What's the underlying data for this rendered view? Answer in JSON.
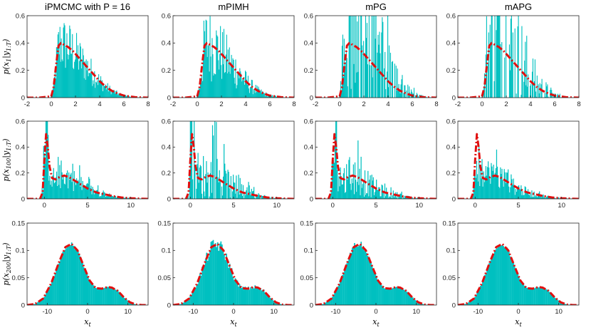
{
  "titles": [
    "iPMCMC with P = 16",
    "mPIMH",
    "mPG",
    "mAPG"
  ],
  "ylabels": [
    {
      "main": "p(x",
      "sub1": "1",
      "mid": "|y",
      "sub2": "1:T",
      "end": ")"
    },
    {
      "main": "p(x",
      "sub1": "100",
      "mid": "|y",
      "sub2": "1:T",
      "end": ")"
    },
    {
      "main": "p(x",
      "sub1": "200",
      "mid": "|y",
      "sub2": "1:T",
      "end": ")"
    }
  ],
  "xlabel": {
    "main": "x",
    "sub": "t"
  },
  "colors": {
    "hist": "#00c0c0",
    "density": "#e01010",
    "axis": "#262626"
  },
  "chart_data": [
    {
      "row": 0,
      "type": "bar",
      "description": "Histogram of samples (cyan) with true posterior density p(x1|y1:T) dashed red",
      "xlim": [
        -2,
        8
      ],
      "ylim": [
        0,
        0.6
      ],
      "xticks": [
        -2,
        0,
        2,
        4,
        6,
        8
      ],
      "yticks": [
        0,
        0.2,
        0.4,
        0.6
      ],
      "xtick_labels": [
        "-2",
        "0",
        "2",
        "4",
        "6",
        "8"
      ],
      "ytick_labels": [
        "0",
        "0.2",
        "0.4",
        "0.6"
      ],
      "density": {
        "x": [
          -2,
          -1,
          0,
          0.2,
          0.4,
          0.6,
          0.8,
          1.0,
          1.4,
          1.8,
          2.2,
          2.6,
          3.0,
          3.5,
          4.0,
          4.5,
          5.0,
          5.5,
          6.0,
          7.0,
          8.0
        ],
        "y": [
          0,
          0,
          0.01,
          0.08,
          0.24,
          0.38,
          0.4,
          0.39,
          0.37,
          0.34,
          0.3,
          0.26,
          0.22,
          0.17,
          0.12,
          0.08,
          0.05,
          0.03,
          0.015,
          0.003,
          0
        ]
      },
      "hist_x_range": [
        0,
        8
      ],
      "noise": [
        0.55,
        0.7,
        2.9,
        2.2
      ]
    },
    {
      "row": 1,
      "type": "bar",
      "description": "Histogram of samples (cyan) with true posterior density p(x100|y1:T) dashed red",
      "xlim": [
        -2,
        12
      ],
      "ylim": [
        0,
        0.6
      ],
      "xticks": [
        0,
        5,
        10
      ],
      "yticks": [
        0,
        0.2,
        0.4,
        0.6
      ],
      "xtick_labels": [
        "0",
        "5",
        "10"
      ],
      "ytick_labels": [
        "0",
        "0.2",
        "0.4",
        "0.6"
      ],
      "density": {
        "x": [
          -2,
          -0.5,
          -0.2,
          0,
          0.2,
          0.4,
          0.6,
          0.9,
          1.3,
          1.8,
          2.3,
          2.8,
          3.3,
          4.0,
          5.0,
          6.0,
          7.0,
          8.0,
          9.0,
          10,
          11,
          12
        ],
        "y": [
          0,
          0,
          0.05,
          0.3,
          0.5,
          0.4,
          0.25,
          0.16,
          0.15,
          0.17,
          0.18,
          0.17,
          0.15,
          0.12,
          0.08,
          0.05,
          0.035,
          0.02,
          0.01,
          0.005,
          0.002,
          0
        ]
      },
      "hist_x_range": [
        -0.4,
        12
      ],
      "noise": [
        0.6,
        1.3,
        0.9,
        0.7
      ]
    },
    {
      "row": 2,
      "type": "bar",
      "description": "Histogram of samples (cyan) with true posterior density p(x200|y1:T) dashed red",
      "xlim": [
        -15,
        15
      ],
      "ylim": [
        0,
        0.15
      ],
      "xticks": [
        -10,
        0,
        10
      ],
      "yticks": [
        0,
        0.05,
        0.1,
        0.15
      ],
      "xtick_labels": [
        "-10",
        "0",
        "10"
      ],
      "ytick_labels": [
        "0",
        "0.05",
        "0.1",
        "0.15"
      ],
      "density": {
        "x": [
          -15,
          -13,
          -11,
          -9,
          -7,
          -5.5,
          -4,
          -2.5,
          -1,
          0.5,
          2,
          3.5,
          5,
          6,
          7.5,
          9,
          10.5,
          12,
          13.5,
          15
        ],
        "y": [
          0,
          0.002,
          0.012,
          0.04,
          0.08,
          0.106,
          0.112,
          0.1,
          0.072,
          0.045,
          0.031,
          0.03,
          0.033,
          0.032,
          0.026,
          0.014,
          0.005,
          0.001,
          0,
          0
        ]
      },
      "hist_x_range": [
        -15,
        15
      ],
      "noise": [
        0.03,
        0.12,
        0.03,
        0.03
      ]
    }
  ]
}
